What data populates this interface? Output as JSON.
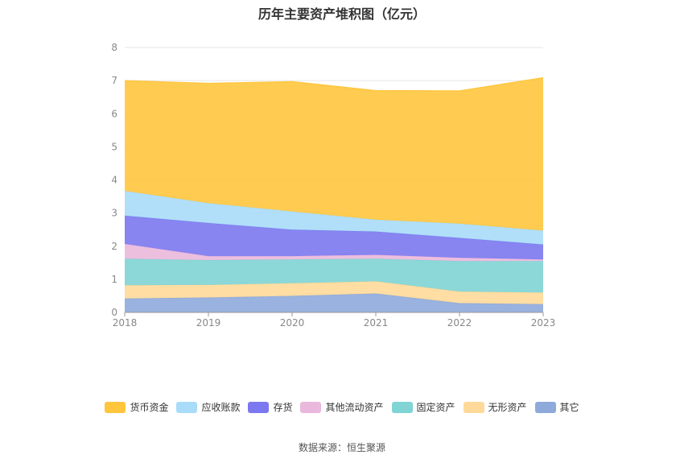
{
  "chart_data": {
    "type": "area",
    "stacked": true,
    "title": "历年主要资产堆积图（亿元）",
    "categories": [
      "2018",
      "2019",
      "2020",
      "2021",
      "2022",
      "2023"
    ],
    "ylim": [
      0,
      8
    ],
    "yticks": [
      "0",
      "1",
      "2",
      "3",
      "4",
      "5",
      "6",
      "7",
      "8"
    ],
    "grid": true,
    "legend_position": "bottom",
    "series": [
      {
        "name": "其它",
        "color": "#8eaadb",
        "values": [
          0.42,
          0.45,
          0.5,
          0.57,
          0.28,
          0.25
        ]
      },
      {
        "name": "无形资产",
        "color": "#ffd999",
        "values": [
          0.4,
          0.38,
          0.38,
          0.37,
          0.35,
          0.35
        ]
      },
      {
        "name": "固定资产",
        "color": "#80d4d4",
        "values": [
          0.8,
          0.75,
          0.72,
          0.68,
          0.92,
          0.95
        ]
      },
      {
        "name": "其他流动资产",
        "color": "#eab8dc",
        "values": [
          0.45,
          0.12,
          0.1,
          0.12,
          0.1,
          0.05
        ]
      },
      {
        "name": "存货",
        "color": "#7b78f0",
        "values": [
          0.85,
          1.0,
          0.8,
          0.7,
          0.6,
          0.45
        ]
      },
      {
        "name": "应收账款",
        "color": "#a8dcf8",
        "values": [
          0.75,
          0.6,
          0.55,
          0.36,
          0.43,
          0.42
        ]
      },
      {
        "name": "货币资金",
        "color": "#ffc53d",
        "values": [
          3.33,
          3.62,
          3.92,
          3.9,
          4.01,
          4.62
        ]
      }
    ]
  },
  "legend_order": [
    "货币资金",
    "应收账款",
    "存货",
    "其他流动资产",
    "固定资产",
    "无形资产",
    "其它"
  ],
  "source": "数据来源：恒生聚源"
}
